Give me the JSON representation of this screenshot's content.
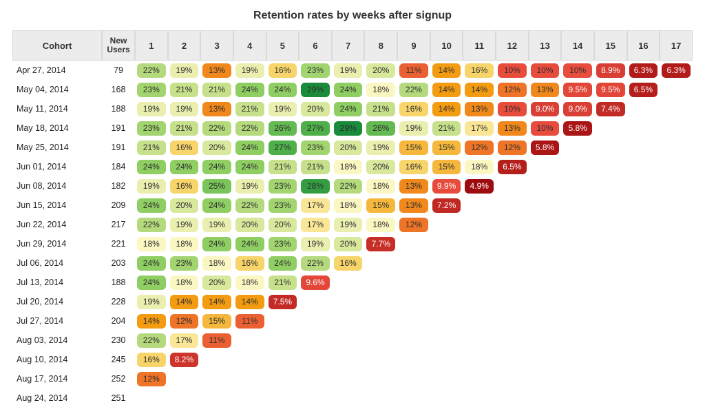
{
  "chart": {
    "type": "cohort-heatmap",
    "title": "Retention rates by weeks after signup",
    "title_fontsize": 16,
    "background_color": "#ffffff",
    "header_bg": "#ececec",
    "header_border": "#d9d9d9",
    "pill_radius": 6,
    "cell_font_size": 12,
    "dark_text_color": "#2d2d2d",
    "light_text_color": "#ffffff",
    "light_text_threshold": 0.1,
    "color_scale": {
      "domain": [
        0.05,
        0.1,
        0.14,
        0.16,
        0.18,
        0.21,
        0.24,
        0.27,
        0.29
      ],
      "range": [
        "#9e0b0e",
        "#e84c3d",
        "#f39c11",
        "#f7d56a",
        "#fbf7c2",
        "#c7e08b",
        "#8fce62",
        "#4fb04a",
        "#1a8b3a"
      ]
    },
    "columns": {
      "cohort_label": "Cohort",
      "new_users_label": "New Users",
      "weeks": [
        1,
        2,
        3,
        4,
        5,
        6,
        7,
        8,
        9,
        10,
        11,
        12,
        13,
        14,
        15,
        16,
        17
      ]
    },
    "rows": [
      {
        "cohort": "Apr 27, 2014",
        "new_users": 79,
        "values": [
          0.22,
          0.19,
          0.13,
          0.19,
          0.16,
          0.23,
          0.19,
          0.2,
          0.11,
          0.14,
          0.16,
          0.1,
          0.1,
          0.1,
          0.089,
          0.063,
          0.063
        ]
      },
      {
        "cohort": "May 04, 2014",
        "new_users": 168,
        "values": [
          0.23,
          0.21,
          0.21,
          0.24,
          0.24,
          0.29,
          0.24,
          0.18,
          0.22,
          0.14,
          0.14,
          0.12,
          0.13,
          0.095,
          0.095,
          0.065
        ]
      },
      {
        "cohort": "May 11, 2014",
        "new_users": 188,
        "values": [
          0.19,
          0.19,
          0.13,
          0.21,
          0.19,
          0.2,
          0.24,
          0.21,
          0.16,
          0.14,
          0.13,
          0.1,
          0.09,
          0.09,
          0.074
        ]
      },
      {
        "cohort": "May 18, 2014",
        "new_users": 191,
        "values": [
          0.23,
          0.21,
          0.22,
          0.22,
          0.26,
          0.27,
          0.29,
          0.26,
          0.19,
          0.21,
          0.17,
          0.13,
          0.1,
          0.058
        ]
      },
      {
        "cohort": "May 25, 2014",
        "new_users": 191,
        "values": [
          0.21,
          0.16,
          0.2,
          0.24,
          0.27,
          0.23,
          0.2,
          0.19,
          0.15,
          0.15,
          0.12,
          0.12,
          0.058
        ]
      },
      {
        "cohort": "Jun 01, 2014",
        "new_users": 184,
        "values": [
          0.24,
          0.24,
          0.24,
          0.24,
          0.21,
          0.21,
          0.18,
          0.2,
          0.16,
          0.15,
          0.18,
          0.065
        ]
      },
      {
        "cohort": "Jun 08, 2014",
        "new_users": 182,
        "values": [
          0.19,
          0.16,
          0.25,
          0.19,
          0.23,
          0.28,
          0.22,
          0.18,
          0.13,
          0.099,
          0.049
        ]
      },
      {
        "cohort": "Jun 15, 2014",
        "new_users": 209,
        "values": [
          0.24,
          0.2,
          0.24,
          0.22,
          0.23,
          0.17,
          0.18,
          0.15,
          0.13,
          0.072
        ]
      },
      {
        "cohort": "Jun 22, 2014",
        "new_users": 217,
        "values": [
          0.22,
          0.19,
          0.19,
          0.2,
          0.2,
          0.17,
          0.19,
          0.18,
          0.12
        ]
      },
      {
        "cohort": "Jun 29, 2014",
        "new_users": 221,
        "values": [
          0.18,
          0.18,
          0.24,
          0.24,
          0.23,
          0.19,
          0.2,
          0.077
        ]
      },
      {
        "cohort": "Jul 06, 2014",
        "new_users": 203,
        "values": [
          0.24,
          0.23,
          0.18,
          0.16,
          0.24,
          0.22,
          0.16
        ]
      },
      {
        "cohort": "Jul 13, 2014",
        "new_users": 188,
        "values": [
          0.24,
          0.18,
          0.2,
          0.18,
          0.21,
          0.096
        ]
      },
      {
        "cohort": "Jul 20, 2014",
        "new_users": 228,
        "values": [
          0.19,
          0.14,
          0.14,
          0.14,
          0.075
        ]
      },
      {
        "cohort": "Jul 27, 2014",
        "new_users": 204,
        "values": [
          0.14,
          0.12,
          0.15,
          0.11
        ]
      },
      {
        "cohort": "Aug 03, 2014",
        "new_users": 230,
        "values": [
          0.22,
          0.17,
          0.11
        ]
      },
      {
        "cohort": "Aug 10, 2014",
        "new_users": 245,
        "values": [
          0.16,
          0.082
        ]
      },
      {
        "cohort": "Aug 17, 2014",
        "new_users": 252,
        "values": [
          0.12
        ]
      },
      {
        "cohort": "Aug 24, 2014",
        "new_users": 251,
        "values": []
      }
    ]
  }
}
